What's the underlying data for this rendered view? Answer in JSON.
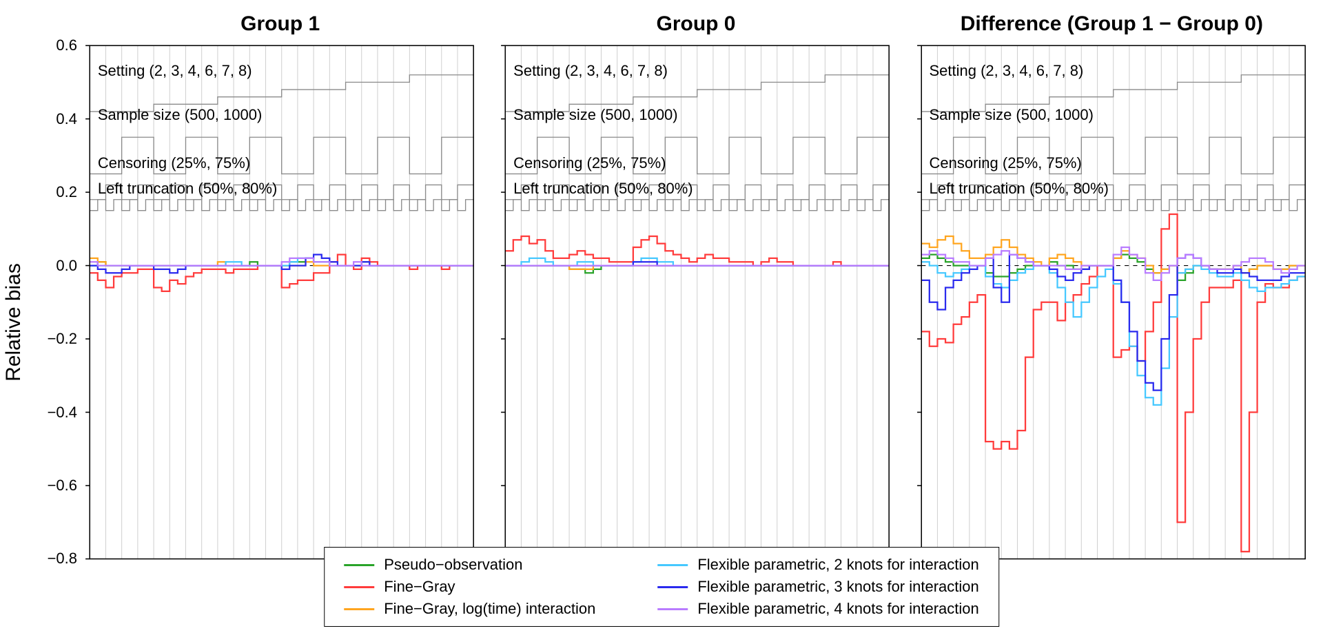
{
  "figure": {
    "background_color": "#ffffff",
    "y_axis_label": "Relative bias",
    "ylim": [
      -0.8,
      0.6
    ],
    "yticks": [
      -0.8,
      -0.6,
      -0.4,
      -0.2,
      0.0,
      0.2,
      0.4,
      0.6
    ],
    "ytick_labels": [
      "−0.8",
      "−0.6",
      "−0.4",
      "−0.2",
      "0.0",
      "0.2",
      "0.4",
      "0.6"
    ],
    "n_x": 48,
    "grid_color_vlines": "#d0d0d0",
    "border_color": "#000000",
    "zero_line_color": "#000000",
    "nested_guide_color": "#8a8a8a",
    "line_width": 2.2,
    "annotations": [
      {
        "text": "Setting (2, 3, 4, 6, 7, 8)",
        "y": 0.53
      },
      {
        "text": "Sample size (500, 1000)",
        "y": 0.41
      },
      {
        "text": "Censoring (25%, 75%)",
        "y": 0.28
      },
      {
        "text": "Left truncation (50%, 80%)",
        "y": 0.21
      }
    ],
    "nested_guides": [
      {
        "period": 8,
        "low": 0.42,
        "high": 0.52,
        "steps": 6
      },
      {
        "period": 4,
        "low": 0.25,
        "high": 0.35
      },
      {
        "period": 2,
        "low": 0.18,
        "high": 0.22
      },
      {
        "period": 1,
        "low": 0.15,
        "high": 0.18
      }
    ],
    "series_colors": {
      "pseudo": "#29a329",
      "finegray": "#ff3b3b",
      "finegray_logtime": "#ffa51f",
      "flex2": "#45c8ff",
      "flex3": "#2a2aee",
      "flex4": "#b97cff"
    },
    "legend": {
      "columns": [
        [
          {
            "key": "pseudo",
            "label": "Pseudo−observation"
          },
          {
            "key": "finegray",
            "label": "Fine−Gray"
          },
          {
            "key": "finegray_logtime",
            "label": "Fine−Gray, log(time) interaction"
          }
        ],
        [
          {
            "key": "flex2",
            "label": "Flexible parametric, 2 knots for interaction"
          },
          {
            "key": "flex3",
            "label": "Flexible parametric, 3 knots for interaction"
          },
          {
            "key": "flex4",
            "label": "Flexible parametric, 4 knots for interaction"
          }
        ]
      ]
    },
    "panels": [
      {
        "title": "Group 1",
        "series": {
          "pseudo": [
            0.0,
            0.01,
            0.0,
            0.0,
            0.0,
            0.0,
            0.0,
            0.0,
            0.0,
            0.0,
            0.0,
            0.0,
            0.0,
            0.0,
            0.0,
            0.0,
            0.0,
            0.0,
            0.0,
            0.0,
            0.01,
            0.0,
            0.0,
            0.0,
            0.0,
            0.01,
            0.01,
            0.02,
            0.01,
            0.01,
            0.0,
            0.0,
            0.0,
            0.0,
            0.01,
            0.0,
            0.0,
            0.0,
            0.0,
            0.0,
            0.0,
            0.0,
            0.0,
            0.0,
            0.0,
            0.0,
            0.0,
            0.0
          ],
          "finegray": [
            -0.02,
            -0.04,
            -0.06,
            -0.03,
            -0.02,
            -0.02,
            -0.01,
            -0.01,
            -0.06,
            -0.07,
            -0.04,
            -0.05,
            -0.03,
            -0.02,
            -0.01,
            -0.01,
            -0.01,
            -0.02,
            -0.01,
            -0.01,
            -0.01,
            0.0,
            0.0,
            0.0,
            -0.06,
            -0.05,
            -0.04,
            -0.04,
            -0.02,
            -0.02,
            0.01,
            0.03,
            0.0,
            -0.01,
            0.02,
            0.01,
            0.0,
            0.0,
            0.0,
            0.0,
            -0.01,
            0.0,
            0.0,
            0.0,
            -0.01,
            0.0,
            0.0,
            0.0
          ],
          "finegray_logtime": [
            0.02,
            0.01,
            0.0,
            0.0,
            0.0,
            0.0,
            0.0,
            0.0,
            0.0,
            0.0,
            0.0,
            0.0,
            0.0,
            0.0,
            0.0,
            0.0,
            0.01,
            0.0,
            0.0,
            0.0,
            0.0,
            0.0,
            0.0,
            0.0,
            0.0,
            0.0,
            0.0,
            0.01,
            0.0,
            0.0,
            0.0,
            0.0,
            0.0,
            0.0,
            0.0,
            0.0,
            0.0,
            0.0,
            0.0,
            0.0,
            0.0,
            0.0,
            0.0,
            0.0,
            0.0,
            0.0,
            0.0,
            0.0
          ],
          "flex2": [
            0.0,
            0.0,
            0.0,
            0.0,
            0.0,
            0.0,
            0.0,
            0.0,
            0.0,
            0.0,
            0.0,
            0.0,
            0.0,
            0.0,
            0.0,
            0.0,
            0.0,
            0.01,
            0.01,
            0.0,
            0.0,
            0.0,
            0.0,
            0.0,
            0.0,
            0.01,
            0.02,
            0.02,
            0.01,
            0.01,
            0.0,
            0.0,
            0.0,
            0.0,
            0.0,
            0.0,
            0.0,
            0.0,
            0.0,
            0.0,
            0.0,
            0.0,
            0.0,
            0.0,
            0.0,
            0.0,
            0.0,
            0.0
          ],
          "flex3": [
            0.0,
            -0.01,
            -0.02,
            -0.02,
            -0.01,
            0.0,
            0.0,
            0.0,
            -0.01,
            -0.01,
            -0.02,
            -0.01,
            0.0,
            0.0,
            0.0,
            0.0,
            0.0,
            0.0,
            0.0,
            0.0,
            0.0,
            0.0,
            0.0,
            0.0,
            -0.01,
            0.0,
            0.0,
            0.02,
            0.03,
            0.02,
            0.01,
            0.0,
            0.0,
            0.0,
            0.01,
            0.0,
            0.0,
            0.0,
            0.0,
            0.0,
            0.0,
            0.0,
            0.0,
            0.0,
            0.0,
            0.0,
            0.0,
            0.0
          ],
          "flex4": [
            0.01,
            0.0,
            0.0,
            0.0,
            0.0,
            0.0,
            0.0,
            0.0,
            0.0,
            0.0,
            0.0,
            0.0,
            0.0,
            0.0,
            0.0,
            0.0,
            0.0,
            0.0,
            0.0,
            0.0,
            0.0,
            0.0,
            0.0,
            0.0,
            0.01,
            0.02,
            0.02,
            0.02,
            0.01,
            0.01,
            0.0,
            0.0,
            0.0,
            0.01,
            0.0,
            0.0,
            0.0,
            0.0,
            0.0,
            0.0,
            0.0,
            0.0,
            0.0,
            0.0,
            0.0,
            0.0,
            0.0,
            0.0
          ]
        }
      },
      {
        "title": "Group 0",
        "series": {
          "pseudo": [
            0.0,
            0.0,
            0.0,
            0.0,
            0.0,
            0.0,
            0.0,
            0.0,
            -0.01,
            -0.01,
            -0.02,
            -0.01,
            0.0,
            0.0,
            0.0,
            0.0,
            0.0,
            0.0,
            0.0,
            0.0,
            0.0,
            0.0,
            0.0,
            0.0,
            0.0,
            0.0,
            0.0,
            0.0,
            0.0,
            0.0,
            0.0,
            0.0,
            0.0,
            0.0,
            0.0,
            0.0,
            0.0,
            0.0,
            0.0,
            0.0,
            0.0,
            0.0,
            0.0,
            0.0,
            0.0,
            0.0,
            0.0,
            0.0
          ],
          "finegray": [
            0.04,
            0.07,
            0.08,
            0.06,
            0.07,
            0.04,
            0.02,
            0.02,
            0.03,
            0.04,
            0.03,
            0.02,
            0.02,
            0.01,
            0.01,
            0.01,
            0.05,
            0.07,
            0.08,
            0.06,
            0.04,
            0.03,
            0.02,
            0.01,
            0.02,
            0.03,
            0.02,
            0.02,
            0.01,
            0.01,
            0.01,
            0.0,
            0.01,
            0.02,
            0.01,
            0.01,
            0.0,
            0.0,
            0.0,
            0.0,
            0.0,
            0.01,
            0.0,
            0.0,
            0.0,
            0.0,
            0.0,
            0.0
          ],
          "finegray_logtime": [
            0.0,
            0.0,
            0.0,
            0.0,
            0.0,
            0.0,
            0.0,
            0.0,
            -0.01,
            -0.01,
            -0.01,
            0.0,
            0.0,
            0.0,
            0.0,
            0.0,
            0.0,
            0.0,
            0.0,
            0.0,
            0.0,
            0.0,
            0.0,
            0.0,
            0.0,
            0.0,
            0.0,
            0.0,
            0.0,
            0.0,
            0.0,
            0.0,
            0.0,
            0.0,
            0.0,
            0.0,
            0.0,
            0.0,
            0.0,
            0.0,
            0.0,
            0.0,
            0.0,
            0.0,
            0.0,
            0.0,
            0.0,
            0.0
          ],
          "flex2": [
            0.0,
            0.0,
            0.01,
            0.02,
            0.02,
            0.01,
            0.0,
            0.0,
            0.0,
            0.01,
            0.01,
            0.0,
            0.0,
            0.0,
            0.0,
            0.0,
            0.01,
            0.02,
            0.02,
            0.01,
            0.01,
            0.0,
            0.0,
            0.0,
            0.0,
            0.0,
            0.0,
            0.0,
            0.0,
            0.0,
            0.0,
            0.0,
            0.0,
            0.0,
            0.0,
            0.0,
            0.0,
            0.0,
            0.0,
            0.0,
            0.0,
            0.0,
            0.0,
            0.0,
            0.0,
            0.0,
            0.0,
            0.0
          ],
          "flex3": [
            0.0,
            0.0,
            0.0,
            0.0,
            0.0,
            0.0,
            0.0,
            0.0,
            0.0,
            0.0,
            0.0,
            0.0,
            0.0,
            0.0,
            0.0,
            0.0,
            0.01,
            0.01,
            0.01,
            0.0,
            0.0,
            0.0,
            0.0,
            0.0,
            0.0,
            0.0,
            0.0,
            0.0,
            0.0,
            0.0,
            0.0,
            0.0,
            0.0,
            0.0,
            0.0,
            0.0,
            0.0,
            0.0,
            0.0,
            0.0,
            0.0,
            0.0,
            0.0,
            0.0,
            0.0,
            0.0,
            0.0,
            0.0
          ],
          "flex4": [
            0.0,
            0.0,
            0.0,
            0.0,
            0.0,
            0.0,
            0.0,
            0.0,
            0.0,
            0.0,
            0.0,
            0.0,
            0.0,
            0.0,
            0.0,
            0.0,
            0.0,
            0.0,
            0.0,
            0.0,
            0.0,
            0.0,
            0.0,
            0.0,
            0.0,
            0.0,
            0.0,
            0.0,
            0.0,
            0.0,
            0.0,
            0.0,
            0.0,
            0.0,
            0.0,
            0.0,
            0.0,
            0.0,
            0.0,
            0.0,
            0.0,
            0.0,
            0.0,
            0.0,
            0.0,
            0.0,
            0.0,
            0.0
          ]
        }
      },
      {
        "title": "Difference (Group 1 − Group 0)",
        "series": {
          "pseudo": [
            0.02,
            0.03,
            0.02,
            0.01,
            0.0,
            0.0,
            0.0,
            0.0,
            -0.02,
            -0.03,
            -0.03,
            -0.02,
            -0.01,
            0.0,
            0.0,
            0.0,
            0.01,
            0.0,
            0.0,
            -0.01,
            -0.01,
            0.0,
            0.0,
            0.0,
            0.02,
            0.03,
            0.02,
            0.01,
            -0.01,
            -0.02,
            -0.01,
            0.0,
            -0.04,
            -0.02,
            0.0,
            0.0,
            -0.01,
            -0.01,
            -0.01,
            0.0,
            -0.02,
            -0.01,
            0.0,
            0.0,
            -0.01,
            -0.01,
            0.0,
            0.0
          ],
          "finegray": [
            -0.18,
            -0.22,
            -0.2,
            -0.21,
            -0.16,
            -0.14,
            -0.1,
            -0.08,
            -0.48,
            -0.5,
            -0.48,
            -0.5,
            -0.45,
            -0.25,
            -0.12,
            -0.1,
            -0.1,
            -0.15,
            -0.1,
            -0.08,
            -0.05,
            -0.03,
            0.0,
            0.0,
            -0.25,
            -0.23,
            -0.22,
            -0.26,
            -0.18,
            -0.1,
            0.1,
            0.14,
            -0.7,
            -0.4,
            -0.2,
            -0.1,
            -0.06,
            -0.06,
            -0.06,
            -0.04,
            -0.78,
            -0.4,
            -0.1,
            -0.05,
            -0.06,
            -0.06,
            -0.04,
            -0.03
          ],
          "finegray_logtime": [
            0.06,
            0.05,
            0.07,
            0.08,
            0.06,
            0.04,
            0.02,
            0.02,
            0.03,
            0.05,
            0.07,
            0.05,
            0.03,
            0.02,
            0.01,
            0.0,
            0.02,
            0.03,
            0.02,
            0.01,
            0.0,
            0.0,
            0.0,
            0.0,
            0.02,
            0.04,
            0.03,
            0.02,
            0.0,
            -0.02,
            -0.01,
            0.0,
            -0.02,
            -0.01,
            0.0,
            0.0,
            -0.01,
            -0.01,
            -0.01,
            0.0,
            -0.02,
            -0.01,
            0.0,
            0.0,
            -0.01,
            -0.01,
            0.0,
            0.0
          ],
          "flex2": [
            0.01,
            0.0,
            -0.02,
            -0.03,
            -0.02,
            -0.01,
            0.0,
            0.0,
            -0.03,
            -0.05,
            -0.06,
            -0.04,
            -0.02,
            -0.01,
            0.0,
            0.0,
            -0.02,
            -0.06,
            -0.1,
            -0.14,
            -0.1,
            -0.06,
            -0.03,
            -0.01,
            -0.05,
            -0.1,
            -0.22,
            -0.3,
            -0.36,
            -0.38,
            -0.28,
            -0.14,
            -0.02,
            -0.01,
            0.0,
            -0.01,
            -0.02,
            -0.03,
            -0.03,
            -0.02,
            -0.04,
            -0.06,
            -0.07,
            -0.06,
            -0.06,
            -0.05,
            -0.04,
            -0.03
          ],
          "flex3": [
            -0.04,
            -0.1,
            -0.12,
            -0.06,
            -0.04,
            -0.02,
            -0.01,
            0.0,
            0.02,
            -0.06,
            -0.1,
            0.03,
            0.02,
            0.01,
            0.0,
            0.0,
            -0.01,
            -0.03,
            -0.04,
            -0.02,
            -0.01,
            0.0,
            0.0,
            0.0,
            -0.04,
            -0.1,
            -0.18,
            -0.26,
            -0.32,
            -0.34,
            -0.2,
            -0.08,
            0.02,
            0.03,
            0.02,
            0.0,
            -0.01,
            -0.02,
            -0.02,
            -0.01,
            -0.02,
            -0.03,
            -0.04,
            -0.04,
            -0.04,
            -0.03,
            -0.02,
            -0.02
          ],
          "flex4": [
            0.03,
            0.04,
            0.03,
            0.02,
            0.01,
            0.01,
            0.0,
            0.0,
            0.02,
            0.03,
            0.04,
            0.03,
            0.02,
            0.01,
            0.0,
            0.0,
            0.0,
            0.0,
            -0.01,
            -0.01,
            0.0,
            0.0,
            0.0,
            0.0,
            0.03,
            0.05,
            0.03,
            0.02,
            -0.02,
            -0.04,
            -0.02,
            0.0,
            0.02,
            0.03,
            0.02,
            0.0,
            -0.01,
            -0.01,
            -0.01,
            0.0,
            0.01,
            0.02,
            0.02,
            0.01,
            -0.01,
            -0.02,
            -0.01,
            0.0
          ]
        }
      }
    ]
  }
}
